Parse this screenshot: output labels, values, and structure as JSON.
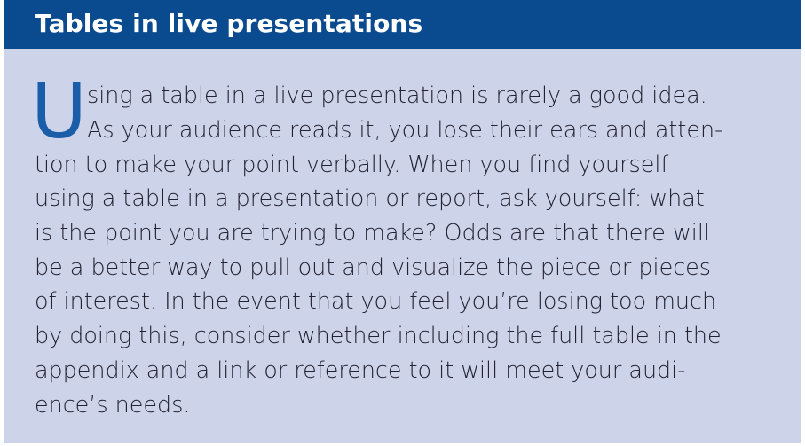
{
  "header": {
    "title": "Tables in live presentations"
  },
  "body": {
    "dropcap": "U",
    "lines": [
      "sing a table in a live presentation is rarely a good idea.",
      "As your audience reads it, you lose their ears and atten-",
      "tion to make your point verbally. When you find yourself",
      "using a table in a presentation or report, ask yourself: what",
      "is the point you are trying to make? Odds are that there will",
      "be a better way to pull out and visualize the piece or pieces",
      "of interest. In the event that you feel you’re losing too much",
      "by doing this, consider whether including the full table in the",
      "appendix and a link or reference to it will meet your audi-",
      "ence’s needs."
    ]
  },
  "colors": {
    "header_bg": "#0a4a8f",
    "box_bg": "#cdd3e8",
    "dropcap": "#1a5ea9",
    "text": "#222233"
  }
}
